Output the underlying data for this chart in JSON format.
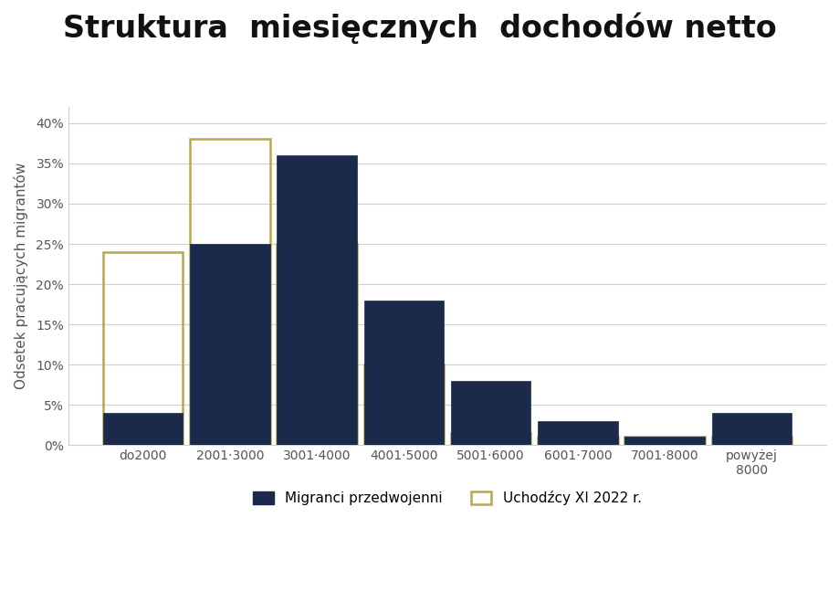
{
  "title": "Struktura  miesięcznych  dochodów netto",
  "categories": [
    "do2000",
    "2001·3000",
    "3001·4000",
    "4001·5000",
    "5001·6000",
    "6001·7000",
    "7001·8000",
    "powyżej\n8000"
  ],
  "migrants_prewar": [
    4,
    25,
    36,
    18,
    8,
    3,
    1,
    4
  ],
  "migrants_2022": [
    24,
    38,
    25,
    10,
    1.5,
    1,
    1,
    1
  ],
  "bar_color_prewar": "#1b2a4a",
  "bar_color_2022": "none",
  "bar_edge_color_2022": "#b8a84a",
  "bar_linewidth_2022": 1.8,
  "ylabel": "Odsetek pracujących migrantów",
  "ylim": [
    0,
    42
  ],
  "yticks": [
    0,
    5,
    10,
    15,
    20,
    25,
    30,
    35,
    40
  ],
  "legend_prewar": "Migranci przedwojenni",
  "legend_2022": "Uchodźcy XI 2022 r.",
  "background_color": "#ffffff",
  "grid_color": "#d0d0d0",
  "title_fontsize": 24,
  "axis_fontsize": 11,
  "tick_fontsize": 10
}
